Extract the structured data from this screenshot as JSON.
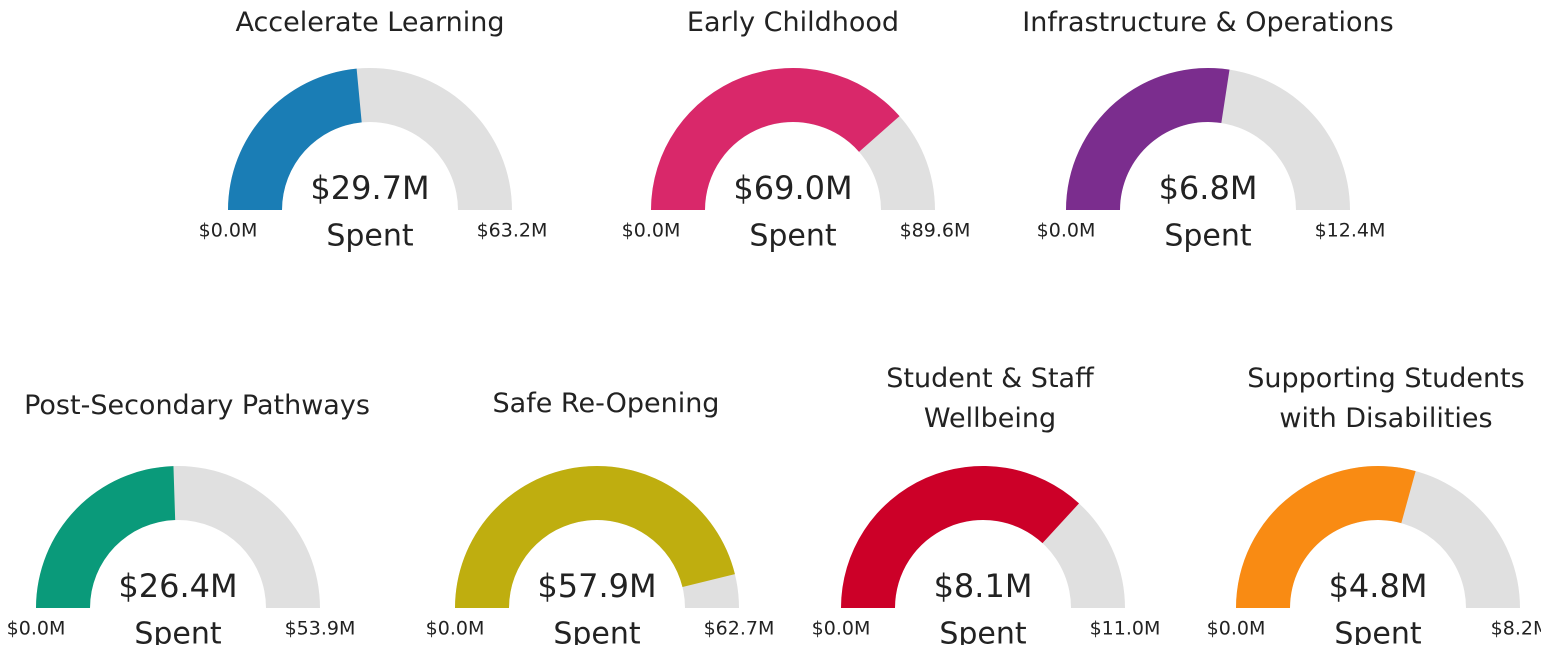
{
  "chart_data": [
    {
      "type": "gauge",
      "title": "Accelerate Learning",
      "values": [
        29.7
      ],
      "value_labels": [
        "$29.7M"
      ],
      "caption": "Spent",
      "color": "#1a7db5",
      "ylim": [
        0,
        63.2
      ],
      "yticks": [
        {
          "value": 0,
          "label": "$0.0M"
        },
        {
          "value": 63.2,
          "label": "$63.2M"
        }
      ]
    },
    {
      "type": "gauge",
      "title": "Early Childhood",
      "values": [
        69.0
      ],
      "value_labels": [
        "$69.0M"
      ],
      "caption": "Spent",
      "color": "#d9286a",
      "ylim": [
        0,
        89.6
      ],
      "yticks": [
        {
          "value": 0,
          "label": "$0.0M"
        },
        {
          "value": 89.6,
          "label": "$89.6M"
        }
      ]
    },
    {
      "type": "gauge",
      "title": "Infrastructure & Operations",
      "values": [
        6.8
      ],
      "value_labels": [
        "$6.8M"
      ],
      "caption": "Spent",
      "color": "#7b2d8e",
      "ylim": [
        0,
        12.4
      ],
      "yticks": [
        {
          "value": 0,
          "label": "$0.0M"
        },
        {
          "value": 12.4,
          "label": "$12.4M"
        }
      ]
    },
    {
      "type": "gauge",
      "title": "Post-Secondary Pathways",
      "values": [
        26.4
      ],
      "value_labels": [
        "$26.4M"
      ],
      "caption": "Spent",
      "color": "#0a9a7a",
      "ylim": [
        0,
        53.9
      ],
      "yticks": [
        {
          "value": 0,
          "label": "$0.0M"
        },
        {
          "value": 53.9,
          "label": "$53.9M"
        }
      ]
    },
    {
      "type": "gauge",
      "title": "Safe Re-Opening",
      "values": [
        57.9
      ],
      "value_labels": [
        "$57.9M"
      ],
      "caption": "Spent",
      "color": "#bfae0f",
      "ylim": [
        0,
        62.7
      ],
      "yticks": [
        {
          "value": 0,
          "label": "$0.0M"
        },
        {
          "value": 62.7,
          "label": "$62.7M"
        }
      ]
    },
    {
      "type": "gauge",
      "title": "Student & Staff Wellbeing",
      "values": [
        8.1
      ],
      "value_labels": [
        "$8.1M"
      ],
      "caption": "Spent",
      "color": "#cc0028",
      "ylim": [
        0,
        11.0
      ],
      "yticks": [
        {
          "value": 0,
          "label": "$0.0M"
        },
        {
          "value": 11.0,
          "label": "$11.0M"
        }
      ]
    },
    {
      "type": "gauge",
      "title": "Supporting Students with Disabilities",
      "values": [
        4.8
      ],
      "value_labels": [
        "$4.8M"
      ],
      "caption": "Spent",
      "color": "#f98b13",
      "ylim": [
        0,
        8.2
      ],
      "yticks": [
        {
          "value": 0,
          "label": "$0.0M"
        },
        {
          "value": 8.2,
          "label": "$8.2M"
        }
      ]
    }
  ]
}
